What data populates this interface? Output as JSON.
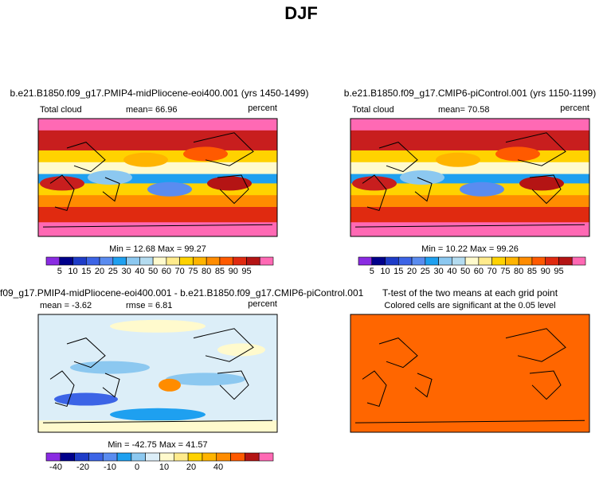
{
  "title": "DJF",
  "panels": [
    {
      "title": "b.e21.B1850.f09_g17.PMIP4-midPliocene-eoi400.001 (yrs 1450-1499)",
      "left": "Total cloud",
      "center": "mean=   66.96",
      "right": "percent",
      "stats": "Min =   12.68  Max =   99.27",
      "colorbar": {
        "labels": [
          5,
          10,
          15,
          20,
          25,
          30,
          40,
          50,
          60,
          70,
          75,
          80,
          85,
          90,
          95
        ],
        "colors": [
          "#8a2be2",
          "#00008b",
          "#1e3cc8",
          "#3c64e6",
          "#5a8cf0",
          "#1ea0f0",
          "#8cc8f0",
          "#b4dcf0",
          "#fffacd",
          "#ffeb8c",
          "#ffd200",
          "#ffb400",
          "#ff8c00",
          "#ff5a00",
          "#e02a10",
          "#b41414",
          "#ff69b4"
        ]
      }
    },
    {
      "title": "b.e21.B1850.f09_g17.CMIP6-piControl.001 (yrs 1150-1199)",
      "left": "Total cloud",
      "center": "mean=   70.58",
      "right": "percent",
      "stats": "Min =   10.22  Max =   99.26",
      "colorbar": {
        "labels": [
          5,
          10,
          15,
          20,
          25,
          30,
          40,
          50,
          60,
          70,
          75,
          80,
          85,
          90,
          95
        ],
        "colors": [
          "#8a2be2",
          "#00008b",
          "#1e3cc8",
          "#3c64e6",
          "#5a8cf0",
          "#1ea0f0",
          "#8cc8f0",
          "#b4dcf0",
          "#fffacd",
          "#ffeb8c",
          "#ffd200",
          "#ffb400",
          "#ff8c00",
          "#ff5a00",
          "#e02a10",
          "#b41414",
          "#ff69b4"
        ]
      }
    },
    {
      "title": "f09_g17.PMIP4-midPliocene-eoi400.001 - b.e21.B1850.f09_g17.CMIP6-piControl.001",
      "left": "mean =  -3.62",
      "center": "rmse =    6.81",
      "right": "percent",
      "stats": "Min = -42.75  Max =   41.57",
      "colorbar": {
        "labels": [
          -40,
          -20,
          -10,
          0,
          10,
          20,
          40
        ],
        "colors": [
          "#8a2be2",
          "#00008b",
          "#1e3cc8",
          "#3c64e6",
          "#5a8cf0",
          "#1ea0f0",
          "#8cc8f0",
          "#dceef8",
          "#fffacd",
          "#ffeb8c",
          "#ffd200",
          "#ffb400",
          "#ff8c00",
          "#ff5a00",
          "#b41414",
          "#ff69b4"
        ]
      }
    },
    {
      "title": "T-test of the two means at each grid point",
      "subtitle": "Colored cells are significant at the 0.05 level"
    }
  ]
}
